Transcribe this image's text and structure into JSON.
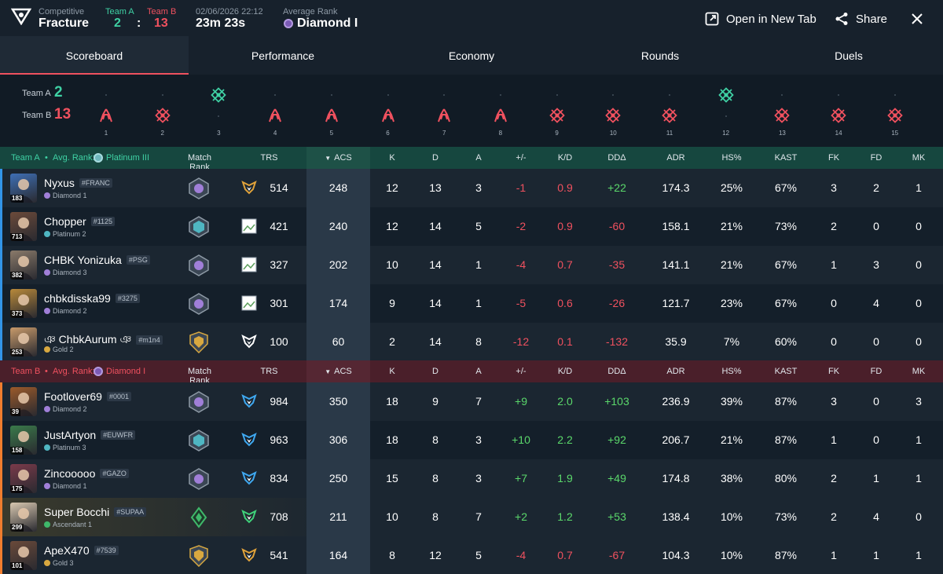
{
  "header": {
    "mode": "Competitive",
    "map": "Fracture",
    "team_a_label": "Team A",
    "team_b_label": "Team B",
    "score_a": "2",
    "score_b": "13",
    "score_sep": ":",
    "datetime": "02/06/2026 22:12",
    "duration": "23m 23s",
    "avg_rank_label": "Average Rank",
    "avg_rank": "Diamond I",
    "open_label": "Open in New Tab",
    "share_label": "Share"
  },
  "tabs": [
    {
      "label": "Scoreboard",
      "active": true
    },
    {
      "label": "Performance",
      "active": false
    },
    {
      "label": "Economy",
      "active": false
    },
    {
      "label": "Rounds",
      "active": false
    },
    {
      "label": "Duels",
      "active": false
    }
  ],
  "timeline": {
    "team_a_label": "Team A",
    "team_b_label": "Team B",
    "team_a_score": "2",
    "team_b_score": "13",
    "rounds": [
      {
        "num": "1",
        "winner": "B",
        "type": "elim"
      },
      {
        "num": "2",
        "winner": "B",
        "type": "defuse"
      },
      {
        "num": "3",
        "winner": "A",
        "type": "defuse"
      },
      {
        "num": "4",
        "winner": "B",
        "type": "elim"
      },
      {
        "num": "5",
        "winner": "B",
        "type": "elim"
      },
      {
        "num": "6",
        "winner": "B",
        "type": "elim"
      },
      {
        "num": "7",
        "winner": "B",
        "type": "elim"
      },
      {
        "num": "8",
        "winner": "B",
        "type": "elim"
      },
      {
        "num": "9",
        "winner": "B",
        "type": "defuse"
      },
      {
        "num": "10",
        "winner": "B",
        "type": "defuse"
      },
      {
        "num": "11",
        "winner": "B",
        "type": "defuse"
      },
      {
        "num": "12",
        "winner": "A",
        "type": "defuse"
      },
      {
        "num": "13",
        "winner": "B",
        "type": "defuse"
      },
      {
        "num": "14",
        "winner": "B",
        "type": "defuse"
      },
      {
        "num": "15",
        "winner": "B",
        "type": "defuse"
      }
    ]
  },
  "columns": {
    "match_rank": "Match Rank",
    "trs": "TRS",
    "acs": "ACS",
    "k": "K",
    "d": "D",
    "a": "A",
    "pm": "+/-",
    "kd": "K/D",
    "dd": "DDΔ",
    "adr": "ADR",
    "hs": "HS%",
    "kast": "KAST",
    "fk": "FK",
    "fd": "FD",
    "mk": "MK"
  },
  "team_a": {
    "name": "Team A",
    "sep": "•",
    "avg_label": "Avg. Rank:",
    "avg_rank": "Platinum III",
    "rank_color": "#6fb7bd",
    "players": [
      {
        "name": "Nyxus",
        "tag": "#FRANC",
        "rank": "Diamond 1",
        "rank_color": "#a07fd8",
        "level": "183",
        "agent_color": "#3e6fb5",
        "trs": "514",
        "acs": "248",
        "k": "12",
        "d": "13",
        "a": "3",
        "pm": "-1",
        "kd": "0.9",
        "dd": "+22",
        "adr": "174.3",
        "hs": "25%",
        "kast": "67%",
        "fk": "3",
        "fd": "2",
        "mk": "1"
      },
      {
        "name": "Chopper",
        "tag": "#1125",
        "rank": "Platinum 2",
        "rank_color": "#4fb6c2",
        "level": "713",
        "agent_color": "#6b4a3a",
        "trs": "421",
        "acs": "240",
        "k": "12",
        "d": "14",
        "a": "5",
        "pm": "-2",
        "kd": "0.9",
        "dd": "-60",
        "adr": "158.1",
        "hs": "21%",
        "kast": "73%",
        "fk": "2",
        "fd": "0",
        "mk": "0"
      },
      {
        "name": "CHBK Yonizuka",
        "tag": "#PSG",
        "rank": "Diamond 3",
        "rank_color": "#a07fd8",
        "level": "382",
        "agent_color": "#8a7a6a",
        "trs": "327",
        "acs": "202",
        "k": "10",
        "d": "14",
        "a": "1",
        "pm": "-4",
        "kd": "0.7",
        "dd": "-35",
        "adr": "141.1",
        "hs": "21%",
        "kast": "67%",
        "fk": "1",
        "fd": "3",
        "mk": "0"
      },
      {
        "name": "chbkdisska99",
        "tag": "#3275",
        "rank": "Diamond 2",
        "rank_color": "#a07fd8",
        "level": "373",
        "agent_color": "#b8893a",
        "trs": "301",
        "acs": "174",
        "k": "9",
        "d": "14",
        "a": "1",
        "pm": "-5",
        "kd": "0.6",
        "dd": "-26",
        "adr": "121.7",
        "hs": "23%",
        "kast": "67%",
        "fk": "0",
        "fd": "4",
        "mk": "0"
      },
      {
        "name": "ঞ ChbkAurum ঞ",
        "tag": "#m1n4",
        "rank": "Gold 2",
        "rank_color": "#d8a840",
        "level": "253",
        "agent_color": "#c89a6a",
        "trs": "100",
        "acs": "60",
        "k": "2",
        "d": "14",
        "a": "8",
        "pm": "-12",
        "kd": "0.1",
        "dd": "-132",
        "adr": "35.9",
        "hs": "7%",
        "kast": "60%",
        "fk": "0",
        "fd": "0",
        "mk": "0"
      }
    ]
  },
  "team_b": {
    "name": "Team B",
    "sep": "•",
    "avg_label": "Avg. Rank:",
    "avg_rank": "Diamond I",
    "rank_color": "#a07fd8",
    "players": [
      {
        "name": "Footlover69",
        "tag": "#0001",
        "rank": "Diamond 2",
        "rank_color": "#a07fd8",
        "level": "39",
        "agent_color": "#9b5a2a",
        "trs": "984",
        "acs": "350",
        "k": "18",
        "d": "9",
        "a": "7",
        "pm": "+9",
        "kd": "2.0",
        "dd": "+103",
        "adr": "236.9",
        "hs": "39%",
        "kast": "87%",
        "fk": "3",
        "fd": "0",
        "mk": "3"
      },
      {
        "name": "JustArtyon",
        "tag": "#EUWFR",
        "rank": "Platinum 3",
        "rank_color": "#4fb6c2",
        "level": "158",
        "agent_color": "#3a7a4a",
        "trs": "963",
        "acs": "306",
        "k": "18",
        "d": "8",
        "a": "3",
        "pm": "+10",
        "kd": "2.2",
        "dd": "+92",
        "adr": "206.7",
        "hs": "21%",
        "kast": "87%",
        "fk": "1",
        "fd": "0",
        "mk": "1"
      },
      {
        "name": "Zincooooo",
        "tag": "#GAZO",
        "rank": "Diamond 1",
        "rank_color": "#a07fd8",
        "level": "175",
        "agent_color": "#7a3a4a",
        "trs": "834",
        "acs": "250",
        "k": "15",
        "d": "8",
        "a": "3",
        "pm": "+7",
        "kd": "1.9",
        "dd": "+49",
        "adr": "174.8",
        "hs": "38%",
        "kast": "80%",
        "fk": "2",
        "fd": "1",
        "mk": "1"
      },
      {
        "name": "Super Bocchi",
        "tag": "#SUPAA",
        "rank": "Ascendant 1",
        "rank_color": "#3fb86a",
        "level": "299",
        "agent_color": "#d8c8b0",
        "trs": "708",
        "acs": "211",
        "k": "10",
        "d": "8",
        "a": "7",
        "pm": "+2",
        "kd": "1.2",
        "dd": "+53",
        "adr": "138.4",
        "hs": "10%",
        "kast": "73%",
        "fk": "2",
        "fd": "4",
        "mk": "0"
      },
      {
        "name": "ApeX470",
        "tag": "#7539",
        "rank": "Gold 3",
        "rank_color": "#d8a840",
        "level": "101",
        "agent_color": "#6a4a3a",
        "trs": "541",
        "acs": "164",
        "k": "8",
        "d": "12",
        "a": "5",
        "pm": "-4",
        "kd": "0.7",
        "dd": "-67",
        "adr": "104.3",
        "hs": "10%",
        "kast": "87%",
        "fk": "1",
        "fd": "1",
        "mk": "1"
      }
    ]
  },
  "colors": {
    "team_a": "#3fd1a4",
    "team_b": "#f0515f",
    "positive": "#5bd86b",
    "negative": "#f0515f",
    "background": "#0f1923"
  },
  "icons": {
    "logo": "tracker-logo-icon",
    "open": "external-link-icon",
    "share": "share-icon",
    "close": "close-icon",
    "elim": "skull-claw-icon",
    "defuse": "spike-defuse-icon"
  }
}
